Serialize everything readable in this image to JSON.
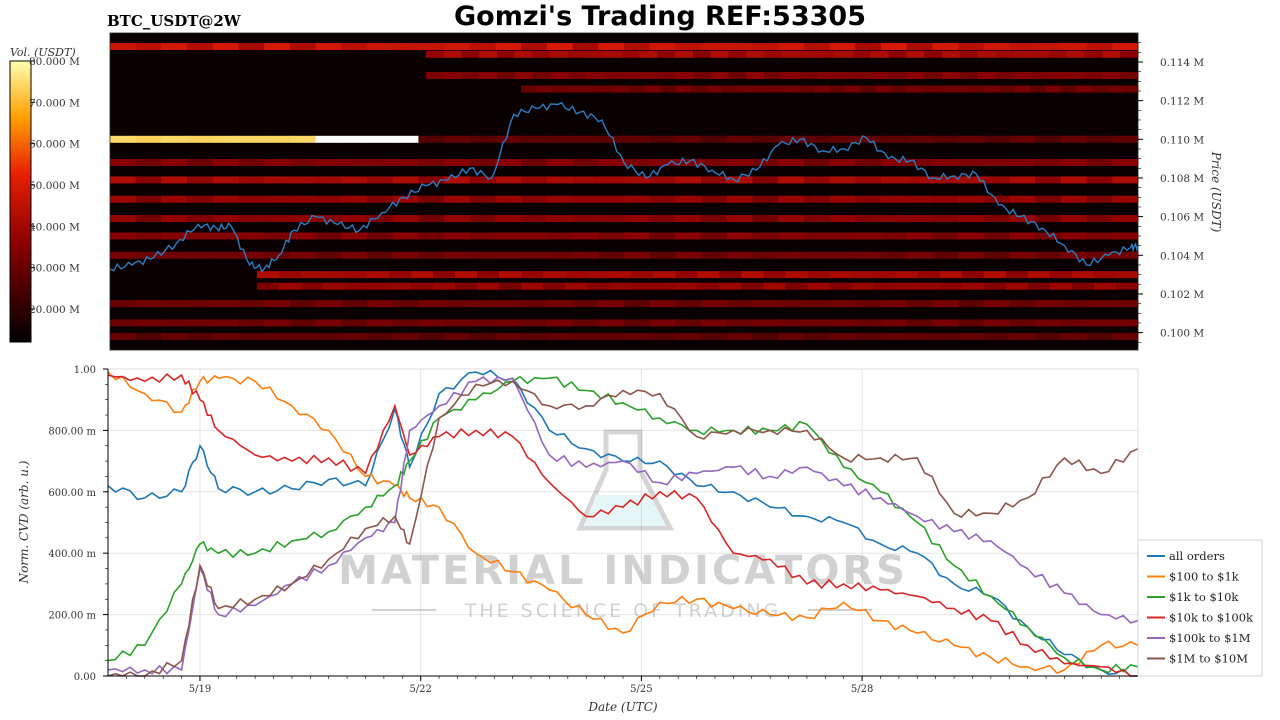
{
  "header": {
    "symbol": "BTC_USDT@2W",
    "title": "Gomzi's Trading REF:53305"
  },
  "watermark": {
    "brand": "MATERIAL INDICATORS",
    "tagline": "THE SCIENCE OF TRADING"
  },
  "colors": {
    "price_line": "#2f7bbf",
    "heatmap_bg": "#0b0000",
    "all_orders": "#1f77b4",
    "usd100_1k": "#ff7f0e",
    "usd1k_10k": "#2ca02c",
    "usd10k_100k": "#d62728",
    "usd100k_1m": "#9467bd",
    "usd1m_10m": "#8c564b"
  },
  "chart_data": [
    {
      "type": "heatmap",
      "colorbar": {
        "label": "Vol. (USDT)",
        "ticks": [
          "20.000 M",
          "30.000 M",
          "40.000 M",
          "50.000 M",
          "60.000 M",
          "70.000 M",
          "80.000 M"
        ],
        "range": [
          12,
          80
        ]
      },
      "ylabel": "Price (USDT)",
      "yticks": [
        "0.100 M",
        "0.102 M",
        "0.104 M",
        "0.106 M",
        "0.108 M",
        "0.110 M",
        "0.112 M",
        "0.114 M"
      ],
      "ylim": [
        99.1,
        115.5
      ],
      "xlim": [
        0,
        14
      ],
      "price_series": {
        "x": [
          0,
          0.3,
          0.6,
          0.9,
          1.2,
          1.45,
          1.65,
          1.9,
          2.1,
          2.3,
          2.5,
          2.8,
          3.1,
          3.4,
          3.7,
          4.0,
          4.3,
          4.6,
          4.9,
          5.2,
          5.5,
          5.8,
          6.1,
          6.4,
          6.7,
          7.0,
          7.3,
          7.6,
          7.9,
          8.2,
          8.5,
          8.8,
          9.1,
          9.4,
          9.7,
          10.0,
          10.3,
          10.6,
          10.9,
          11.2,
          11.5,
          11.8,
          12.1,
          12.4,
          12.7,
          13.0,
          13.3,
          13.6,
          13.9,
          14.0
        ],
        "y": [
          103.3,
          103.5,
          103.9,
          104.6,
          105.6,
          105.4,
          105.5,
          103.5,
          103.3,
          104.0,
          105.3,
          106.0,
          105.6,
          105.3,
          106.2,
          107.0,
          107.6,
          107.9,
          108.5,
          108.0,
          111.3,
          111.6,
          111.8,
          111.4,
          111.0,
          108.8,
          108.0,
          108.7,
          108.9,
          108.4,
          107.9,
          108.4,
          109.7,
          110.0,
          109.4,
          109.5,
          110.1,
          109.0,
          108.9,
          108.0,
          108.1,
          108.2,
          106.6,
          106.0,
          105.4,
          104.5,
          103.5,
          104.0,
          104.4,
          104.5
        ]
      },
      "bands": [
        {
          "price": 114.8,
          "start": 0,
          "intensity": 0.55
        },
        {
          "price": 114.4,
          "start": 4.3,
          "intensity": 0.45
        },
        {
          "price": 113.3,
          "start": 4.3,
          "intensity": 0.35
        },
        {
          "price": 112.6,
          "start": 5.6,
          "intensity": 0.3
        },
        {
          "price": 110.0,
          "start": 0,
          "intensity": 1.0
        },
        {
          "price": 108.8,
          "start": 0,
          "intensity": 0.35
        },
        {
          "price": 107.9,
          "start": 0,
          "intensity": 0.45
        },
        {
          "price": 106.9,
          "start": 0,
          "intensity": 0.4
        },
        {
          "price": 105.9,
          "start": 0,
          "intensity": 0.38
        },
        {
          "price": 105.0,
          "start": 0,
          "intensity": 0.35
        },
        {
          "price": 104.0,
          "start": 0,
          "intensity": 0.3
        },
        {
          "price": 103.0,
          "start": 2.0,
          "intensity": 0.45
        },
        {
          "price": 102.4,
          "start": 2.0,
          "intensity": 0.4
        },
        {
          "price": 101.5,
          "start": 0,
          "intensity": 0.3
        },
        {
          "price": 100.5,
          "start": 0,
          "intensity": 0.3
        },
        {
          "price": 99.8,
          "start": 0,
          "intensity": 0.25
        }
      ]
    },
    {
      "type": "line",
      "xlabel": "Date (UTC)",
      "ylabel": "Norm. CVD (arb. u.)",
      "xticks": [
        {
          "x": 1.25,
          "label": "5/19"
        },
        {
          "x": 4.25,
          "label": "5/22"
        },
        {
          "x": 7.25,
          "label": "5/25"
        },
        {
          "x": 10.25,
          "label": "5/28"
        }
      ],
      "yticks": [
        {
          "y": 0.0,
          "label": "0.00"
        },
        {
          "y": 0.2,
          "label": "200.00 m"
        },
        {
          "y": 0.4,
          "label": "400.00 m"
        },
        {
          "y": 0.6,
          "label": "600.00 m"
        },
        {
          "y": 0.8,
          "label": "800.00 m"
        },
        {
          "y": 1.0,
          "label": "1.00"
        }
      ],
      "xlim": [
        0,
        14
      ],
      "ylim": [
        0,
        1.0
      ],
      "grid": true,
      "legend_position": "bottom-right",
      "x": [
        0,
        0.5,
        1.0,
        1.25,
        1.5,
        2.0,
        2.5,
        3.0,
        3.5,
        3.9,
        4.1,
        4.5,
        5.0,
        5.5,
        6.0,
        6.5,
        7.0,
        7.5,
        8.0,
        8.5,
        9.0,
        9.5,
        10.0,
        10.5,
        11.0,
        11.5,
        12.0,
        12.5,
        13.0,
        13.5,
        14.0
      ],
      "series": [
        {
          "name": "all orders",
          "color_key": "all_orders",
          "values": [
            0.62,
            0.58,
            0.6,
            0.75,
            0.61,
            0.6,
            0.61,
            0.64,
            0.62,
            0.87,
            0.68,
            0.92,
            0.99,
            0.97,
            0.8,
            0.74,
            0.7,
            0.7,
            0.62,
            0.6,
            0.55,
            0.52,
            0.5,
            0.43,
            0.4,
            0.3,
            0.26,
            0.16,
            0.07,
            0.02,
            0.0
          ]
        },
        {
          "name": "$100 to $1k",
          "color_key": "usd100_1k",
          "values": [
            0.99,
            0.92,
            0.86,
            0.96,
            0.97,
            0.96,
            0.88,
            0.8,
            0.65,
            0.62,
            0.58,
            0.55,
            0.4,
            0.34,
            0.28,
            0.2,
            0.14,
            0.24,
            0.25,
            0.22,
            0.2,
            0.19,
            0.24,
            0.18,
            0.14,
            0.1,
            0.06,
            0.03,
            0.02,
            0.1,
            0.1
          ]
        },
        {
          "name": "$1k to $10k",
          "color_key": "usd1k_10k",
          "values": [
            0.05,
            0.1,
            0.3,
            0.43,
            0.4,
            0.4,
            0.44,
            0.47,
            0.55,
            0.62,
            0.7,
            0.84,
            0.9,
            0.96,
            0.97,
            0.93,
            0.89,
            0.84,
            0.8,
            0.8,
            0.8,
            0.82,
            0.68,
            0.6,
            0.5,
            0.36,
            0.26,
            0.16,
            0.06,
            0.02,
            0.03
          ]
        },
        {
          "name": "$10k to $100k",
          "color_key": "usd10k_100k",
          "values": [
            0.98,
            0.96,
            0.98,
            0.9,
            0.8,
            0.72,
            0.7,
            0.71,
            0.66,
            0.88,
            0.72,
            0.78,
            0.8,
            0.78,
            0.63,
            0.52,
            0.55,
            0.6,
            0.58,
            0.4,
            0.38,
            0.3,
            0.3,
            0.28,
            0.26,
            0.22,
            0.18,
            0.1,
            0.04,
            0.03,
            0.0
          ]
        },
        {
          "name": "$100k to $1M",
          "color_key": "usd100k_1m",
          "values": [
            0.02,
            0.02,
            0.02,
            0.35,
            0.2,
            0.23,
            0.3,
            0.36,
            0.45,
            0.5,
            0.8,
            0.88,
            0.96,
            0.97,
            0.72,
            0.68,
            0.7,
            0.63,
            0.66,
            0.68,
            0.65,
            0.68,
            0.62,
            0.58,
            0.52,
            0.47,
            0.44,
            0.35,
            0.27,
            0.2,
            0.18
          ]
        },
        {
          "name": "$1M to $10M",
          "color_key": "usd1m_10m",
          "values": [
            0.0,
            0.0,
            0.05,
            0.36,
            0.22,
            0.25,
            0.3,
            0.38,
            0.48,
            0.52,
            0.43,
            0.84,
            0.95,
            0.96,
            0.88,
            0.88,
            0.93,
            0.92,
            0.78,
            0.8,
            0.8,
            0.8,
            0.71,
            0.71,
            0.71,
            0.53,
            0.53,
            0.58,
            0.71,
            0.66,
            0.74
          ]
        }
      ]
    }
  ]
}
